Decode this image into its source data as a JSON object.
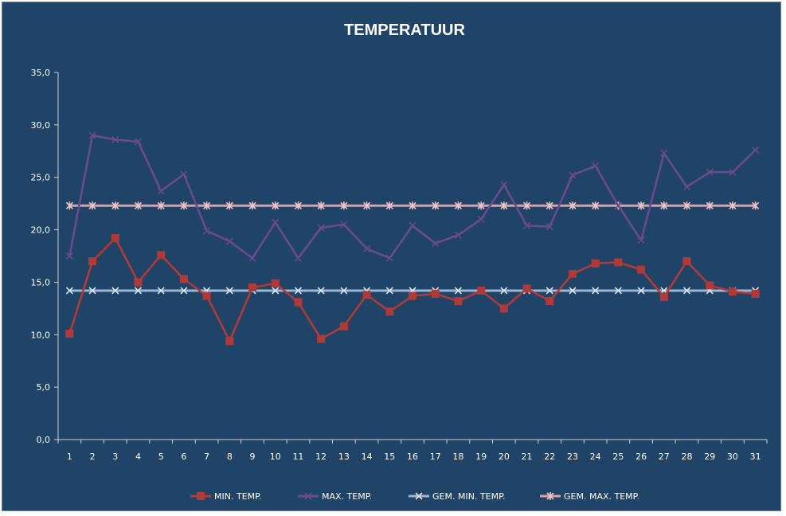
{
  "chart_data": {
    "type": "line",
    "title": "TEMPERATUUR",
    "xlabel": "",
    "ylabel": "",
    "ylim": [
      0,
      35
    ],
    "yticks": [
      "0,0",
      "5,0",
      "10,0",
      "15,0",
      "20,0",
      "25,0",
      "30,0",
      "35,0"
    ],
    "categories": [
      "1",
      "2",
      "3",
      "4",
      "5",
      "6",
      "7",
      "8",
      "9",
      "10",
      "11",
      "12",
      "13",
      "14",
      "15",
      "16",
      "17",
      "18",
      "19",
      "20",
      "21",
      "22",
      "23",
      "24",
      "25",
      "26",
      "27",
      "28",
      "29",
      "30",
      "31"
    ],
    "grid": false,
    "legend_position": "bottom",
    "series": [
      {
        "name": "MIN. TEMP.",
        "color": "#b03a3a",
        "marker": "square",
        "values": [
          10.1,
          17.0,
          19.2,
          15.0,
          17.6,
          15.3,
          13.7,
          9.4,
          14.5,
          14.9,
          13.1,
          9.6,
          10.8,
          13.8,
          12.2,
          13.7,
          13.9,
          13.2,
          14.2,
          12.5,
          14.4,
          13.2,
          15.8,
          16.8,
          16.9,
          16.2,
          13.6,
          17.0,
          14.7,
          14.1,
          13.9
        ]
      },
      {
        "name": "MAX. TEMP.",
        "color": "#6a4a8c",
        "marker": "x",
        "values": [
          17.5,
          29.0,
          28.6,
          28.4,
          23.7,
          25.3,
          19.9,
          18.9,
          17.3,
          20.7,
          17.3,
          20.2,
          20.5,
          18.2,
          17.3,
          20.4,
          18.7,
          19.5,
          21.0,
          24.3,
          20.4,
          20.3,
          25.2,
          26.1,
          22.3,
          19.0,
          27.3,
          24.1,
          25.5,
          25.5,
          27.6
        ]
      },
      {
        "name": "GEM. MIN. TEMP.",
        "color": "#9cb6d4",
        "marker": "x",
        "values": [
          14.2,
          14.2,
          14.2,
          14.2,
          14.2,
          14.2,
          14.2,
          14.2,
          14.2,
          14.2,
          14.2,
          14.2,
          14.2,
          14.2,
          14.2,
          14.2,
          14.2,
          14.2,
          14.2,
          14.2,
          14.2,
          14.2,
          14.2,
          14.2,
          14.2,
          14.2,
          14.2,
          14.2,
          14.2,
          14.2,
          14.2
        ]
      },
      {
        "name": "GEM. MAX. TEMP.",
        "color": "#d9a0a6",
        "marker": "asterisk",
        "values": [
          22.3,
          22.3,
          22.3,
          22.3,
          22.3,
          22.3,
          22.3,
          22.3,
          22.3,
          22.3,
          22.3,
          22.3,
          22.3,
          22.3,
          22.3,
          22.3,
          22.3,
          22.3,
          22.3,
          22.3,
          22.3,
          22.3,
          22.3,
          22.3,
          22.3,
          22.3,
          22.3,
          22.3,
          22.3,
          22.3,
          22.3
        ]
      }
    ]
  }
}
